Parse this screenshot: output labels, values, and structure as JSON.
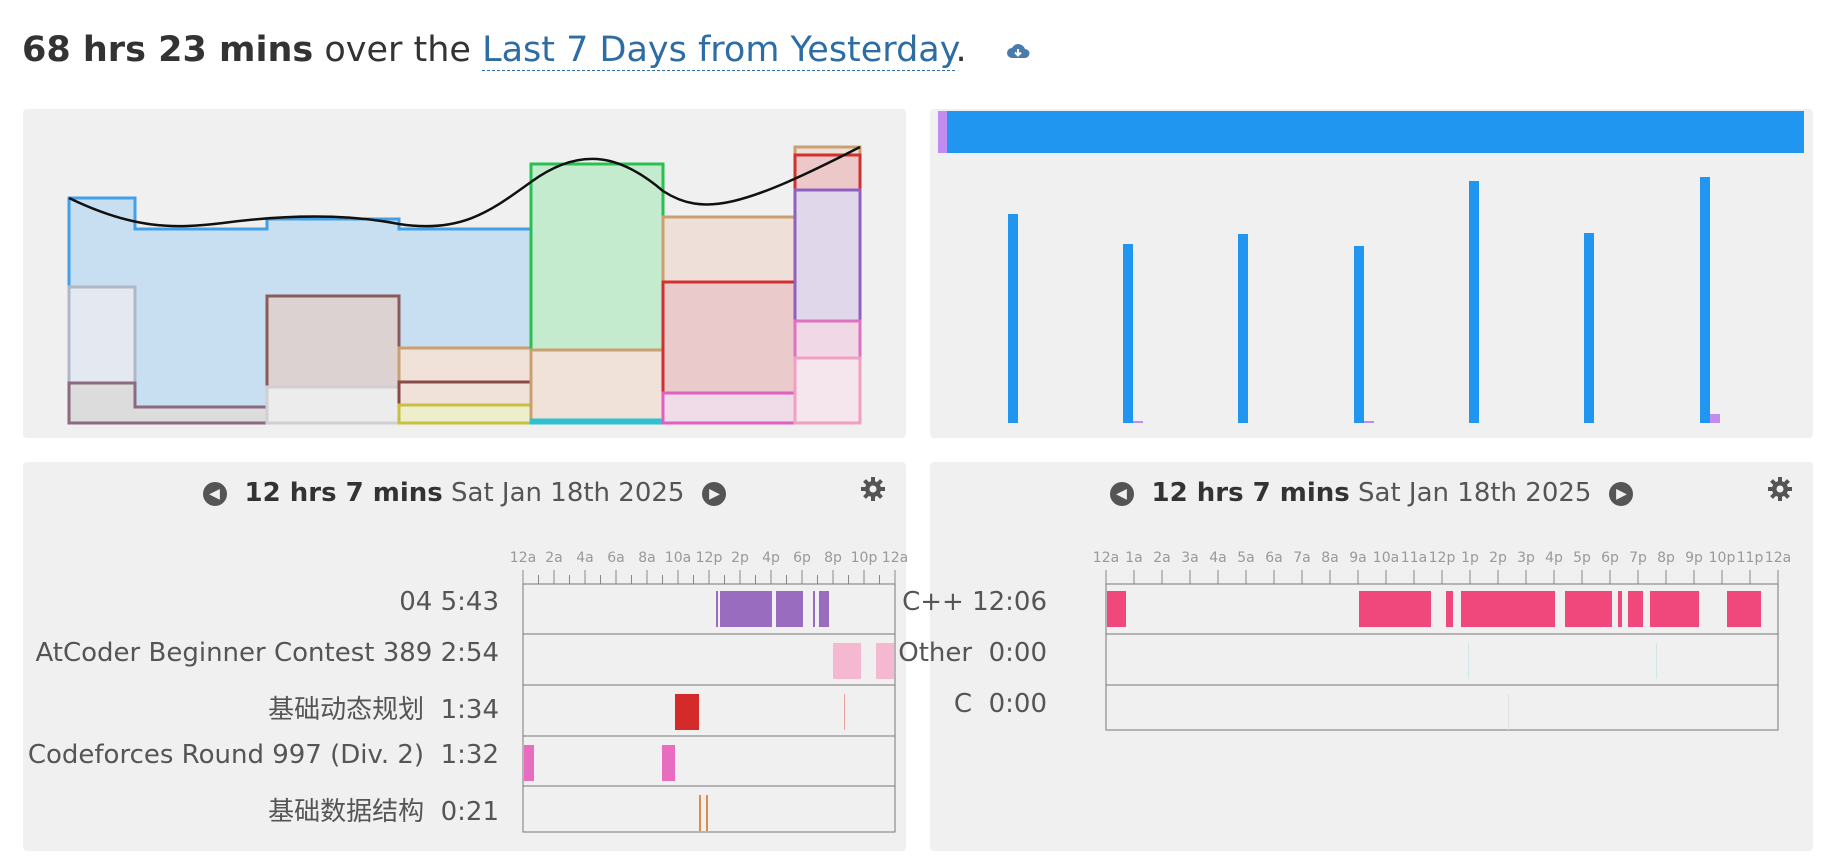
{
  "header": {
    "total": "68 hrs 23 mins",
    "middle": " over the ",
    "range": "Last 7 Days from Yesterday",
    "period": "."
  },
  "icons": {
    "download": "cloud-download-icon",
    "prev": "chevron-left-circle-icon",
    "next": "chevron-right-circle-icon",
    "settings": "gear-icon"
  },
  "projects_panel": {
    "day_total": "12 hrs 7 mins",
    "date": "Sat Jan 18th 2025",
    "time_labels": [
      "12a",
      "2a",
      "4a",
      "6a",
      "8a",
      "10a",
      "12p",
      "2p",
      "4p",
      "6p",
      "8p",
      "10p",
      "12a"
    ],
    "rows": [
      {
        "name": "04",
        "time": "5:43"
      },
      {
        "name": "AtCoder Beginner Contest 389",
        "time": "2:54"
      },
      {
        "name": "基础动态规划",
        "time": "1:34"
      },
      {
        "name": "Codeforces Round 997 (Div. 2)",
        "time": "1:32"
      },
      {
        "name": "基础数据结构",
        "time": "0:21"
      }
    ]
  },
  "languages_panel": {
    "day_total": "12 hrs 7 mins",
    "date": "Sat Jan 18th 2025",
    "time_labels": [
      "12a",
      "1a",
      "2a",
      "3a",
      "4a",
      "5a",
      "6a",
      "7a",
      "8a",
      "9a",
      "10a",
      "11a",
      "12p",
      "1p",
      "2p",
      "3p",
      "4p",
      "5p",
      "6p",
      "7p",
      "8p",
      "9p",
      "10p",
      "11p",
      "12a"
    ],
    "rows": [
      {
        "name": "C++",
        "time": "12:06"
      },
      {
        "name": "Other",
        "time": "0:00"
      },
      {
        "name": "C",
        "time": "0:00"
      }
    ]
  },
  "colors": {
    "cpp": "#f0487d",
    "bar_blue": "#2196f0",
    "bar_purple": "#c08cf0",
    "link": "#2e6da4"
  }
}
